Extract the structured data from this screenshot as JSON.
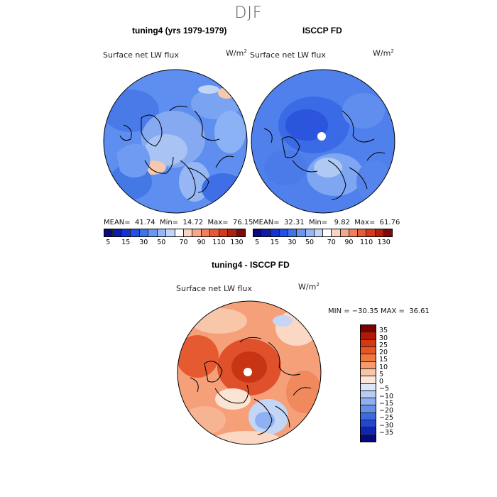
{
  "season": "DJF",
  "panels": [
    {
      "title": "tuning4 (yrs 1979-1979)",
      "variable": "Surface net LW flux",
      "units_base": "W/m",
      "units_exp": "2",
      "stats": "MEAN=  41.74  Min=  14.72  Max=  76.15"
    },
    {
      "title": "ISCCP FD",
      "variable": "Surface net LW flux",
      "units_base": "W/m",
      "units_exp": "2",
      "stats": "MEAN=  32.31  Min=   9.82  Max=  61.76"
    }
  ],
  "diff": {
    "title": "tuning4 - ISCCP FD",
    "variable": "Surface net LW flux",
    "units_base": "W/m",
    "units_exp": "2",
    "stats": "MIN = −30.35 MAX =  36.61"
  },
  "colorbar_abs": {
    "colors": [
      "#0a0a7a",
      "#0d1ca8",
      "#1533d1",
      "#2152e6",
      "#3f73ee",
      "#6a96f2",
      "#97b7f4",
      "#c3d5f6",
      "#ffffff",
      "#fbd3c0",
      "#f6a88a",
      "#f17f5e",
      "#e65a38",
      "#d23a1b",
      "#b02011",
      "#7e0a08"
    ],
    "ticks": [
      "5",
      "15",
      "30",
      "50",
      "70",
      "90",
      "110",
      "130"
    ]
  },
  "colorbar_diff": {
    "colors": [
      "#7a0000",
      "#b01a05",
      "#d43a10",
      "#ea5525",
      "#f2773f",
      "#f49a6d",
      "#f8c5a5",
      "#fce6d8",
      "#dde7f8",
      "#b7cdf5",
      "#8fb0f1",
      "#6790ec",
      "#3c6ae4",
      "#2046d6",
      "#0f26b0",
      "#060a80"
    ],
    "ticks": [
      "35",
      "30",
      "25",
      "20",
      "15",
      "10",
      "5",
      "0",
      "−5",
      "−10",
      "−15",
      "−20",
      "−25",
      "−30",
      "−35"
    ]
  }
}
